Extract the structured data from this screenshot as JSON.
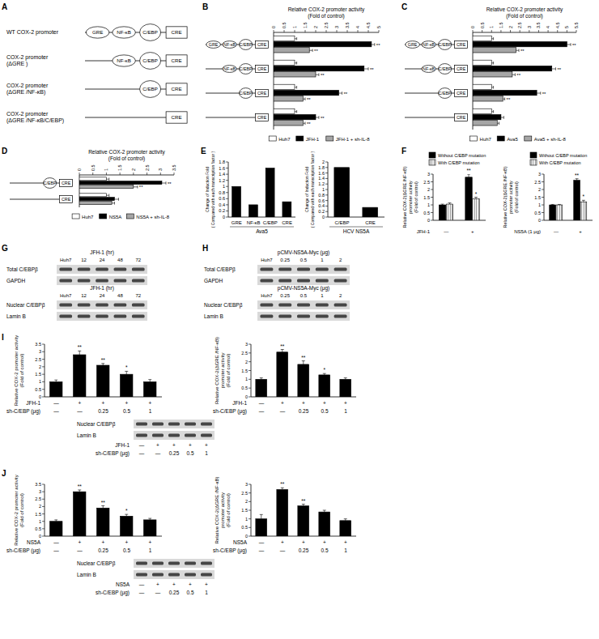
{
  "chart_data": [
    {
      "type": "bar",
      "orientation": "horizontal",
      "xlabel": [
        "Relative COX-2 promoter activity",
        "(Fold of control)"
      ],
      "categories": [
        "GRE NF-κB C/EBP CRE",
        "NF-κB C/EBP CRE",
        "C/EBP CRE",
        "CRE"
      ],
      "xlim": [
        0,
        5
      ],
      "xticks": [
        0,
        0.5,
        1,
        1.5,
        2,
        2.5,
        3,
        3.5,
        4,
        4.5,
        5
      ],
      "legend": "bottom",
      "series": [
        {
          "name": "Huh7",
          "color": "#ffffff",
          "values": [
            1,
            1,
            1,
            1
          ],
          "errors": [
            0.1,
            0.1,
            0.1,
            0.1
          ],
          "annotations": [
            null,
            null,
            null,
            null
          ]
        },
        {
          "name": "JFH-1",
          "color": "#000000",
          "values": [
            4.65,
            4.3,
            3.1,
            2.0
          ],
          "errors": [
            0.15,
            0.2,
            0.15,
            0.15
          ],
          "annotations": [
            "**",
            "**",
            "**",
            "**"
          ]
        },
        {
          "name": "JFH-1 + sh-IL-8",
          "color": "#a6a6a6",
          "values": [
            1.7,
            2.0,
            1.4,
            1.4
          ],
          "errors": [
            0.15,
            0.15,
            0.1,
            0.1
          ],
          "annotations": [
            "**",
            "**",
            "**",
            "**"
          ]
        }
      ]
    },
    {
      "type": "bar",
      "orientation": "horizontal",
      "xlabel": [
        "Relative COX-2 promoter activity",
        "(Fold of control)"
      ],
      "categories": [
        "GRE NF-κB C/EBP CRE",
        "NF-κB C/EBP CRE",
        "C/EBP CRE",
        "CRE"
      ],
      "xlim": [
        0,
        5.5
      ],
      "xticks": [
        0,
        0.5,
        1,
        1.5,
        2,
        2.5,
        3,
        3.5,
        4,
        4.5,
        5,
        5.5
      ],
      "legend": "bottom",
      "series": [
        {
          "name": "Huh7",
          "color": "#ffffff",
          "values": [
            1,
            1,
            1,
            1
          ],
          "errors": [
            0.1,
            0.1,
            0.1,
            0.1
          ],
          "annotations": [
            null,
            null,
            null,
            null
          ]
        },
        {
          "name": "Ava5",
          "color": "#000000",
          "values": [
            5.0,
            4.2,
            3.4,
            1.5
          ],
          "errors": [
            0.2,
            0.2,
            0.2,
            0.15
          ],
          "annotations": [
            "**",
            "**",
            "**",
            null
          ]
        },
        {
          "name": "Ava5 + sh-IL-8",
          "color": "#a6a6a6",
          "values": [
            2.3,
            2.1,
            1.6,
            1.3
          ],
          "errors": [
            0.15,
            0.15,
            0.1,
            0.1
          ],
          "annotations": [
            "**",
            "**",
            "**",
            null
          ]
        }
      ]
    },
    {
      "type": "bar",
      "orientation": "horizontal",
      "xlabel": [
        "Relative COX-2 promoter activity",
        "(Fold of control)"
      ],
      "categories": [
        "C/EBP CRE",
        "CRE"
      ],
      "xlim": [
        0,
        3.5
      ],
      "xticks": [
        0,
        0.5,
        1,
        1.5,
        2,
        2.5,
        3,
        3.5
      ],
      "legend": "bottom",
      "series": [
        {
          "name": "Huh7",
          "color": "#ffffff",
          "values": [
            1,
            1
          ],
          "errors": [
            0.1,
            0.1
          ],
          "annotations": [
            null,
            null
          ]
        },
        {
          "name": "NS5A",
          "color": "#000000",
          "values": [
            3.05,
            1.3
          ],
          "errors": [
            0.15,
            0.15
          ],
          "annotations": [
            "**",
            null
          ]
        },
        {
          "name": "NS5A + sh-IL-8",
          "color": "#a6a6a6",
          "values": [
            2.0,
            1.2
          ],
          "errors": [
            0.15,
            0.1
          ],
          "annotations": [
            "**",
            null
          ]
        }
      ]
    },
    {
      "type": "bar",
      "ylabel": [
        "Change of Induction Fold",
        "( Compared with each transcription factor )"
      ],
      "categories": [
        "GRE",
        "NF-κB",
        "C/EBP",
        "CRE"
      ],
      "xlabel": "Ava5",
      "ylim": [
        0,
        1.8
      ],
      "yticks": [
        0,
        0.2,
        0.4,
        0.6,
        0.8,
        1,
        1.2,
        1.4,
        1.6,
        1.8
      ],
      "color": "#000000",
      "values": [
        1,
        0.4,
        1.6,
        0.5
      ]
    },
    {
      "type": "bar",
      "ylabel": [
        "Change of Induction Fold",
        "( Compared with each transcription factor )"
      ],
      "categories": [
        "C/EBP",
        "CRE"
      ],
      "xlabel": "HCV NS5A",
      "ylim": [
        0,
        2
      ],
      "yticks": [
        0,
        0.2,
        0.4,
        0.6,
        0.8,
        1,
        1.2,
        1.4,
        1.6,
        1.8,
        2
      ],
      "color": "#000000",
      "values": [
        1.8,
        0.35
      ]
    },
    {
      "type": "bar",
      "ylabel": [
        "Relative COX-2(ΔGRE /NF-κB)",
        "promoter activity",
        "(Fold of control)"
      ],
      "categories": [
        "—",
        "+"
      ],
      "xlabel": "JFH-1",
      "legend": "top",
      "ylim": [
        0,
        3
      ],
      "yticks": [
        0,
        0.5,
        1,
        1.5,
        2,
        2.5,
        3
      ],
      "series": [
        {
          "name": "Without C/EBP mutation",
          "color": "#000000",
          "values": [
            1,
            2.8
          ],
          "errors": [
            0.05,
            0.2
          ],
          "annotations": [
            null,
            "**"
          ]
        },
        {
          "name": "With C/EBP mutation",
          "color": "#ffffff",
          "values": [
            1.05,
            1.4
          ],
          "errors": [
            0.08,
            0.1
          ],
          "annotations": [
            null,
            "*"
          ]
        }
      ]
    },
    {
      "type": "bar",
      "ylabel": [
        "Relative COX-2(ΔGRE /NF-κB)",
        "promoter activity",
        "(Fold of control)"
      ],
      "categories": [
        "—",
        "+"
      ],
      "xlabel": "NS5A (1 μg)",
      "legend": "top",
      "ylim": [
        0,
        3
      ],
      "yticks": [
        0,
        0.5,
        1,
        1.5,
        2,
        2.5,
        3
      ],
      "series": [
        {
          "name": "Without C/EBP mutation",
          "color": "#000000",
          "values": [
            1,
            2.6
          ],
          "errors": [
            0.03,
            0.1
          ],
          "annotations": [
            null,
            "**"
          ]
        },
        {
          "name": "With C/EBP mutation",
          "color": "#ffffff",
          "values": [
            1.0,
            1.2
          ],
          "errors": [
            0.03,
            0.1
          ],
          "annotations": [
            null,
            "*"
          ]
        }
      ]
    },
    {
      "type": "bar",
      "ylabel": [
        "Relative COX-2 promoter activity",
        "(Fold of control)"
      ],
      "categories": [
        null,
        null,
        null,
        null,
        null
      ],
      "ylim": [
        0,
        3.5
      ],
      "yticks": [
        0,
        0.5,
        1,
        1.5,
        2,
        2.5,
        3,
        3.5
      ],
      "color": "#000000",
      "values": [
        1,
        2.8,
        2.1,
        1.5,
        1.0
      ],
      "errors": [
        0.12,
        0.25,
        0.12,
        0.2,
        0.15
      ],
      "annotations": [
        null,
        "**",
        "**",
        "*",
        null
      ],
      "conditions": [
        {
          "label": "JFH-1",
          "values": [
            "—",
            "+",
            "+",
            "+",
            "+"
          ]
        },
        {
          "label": "sh-C/EBP (μg)",
          "values": [
            "—",
            "—",
            "0.25",
            "0.5",
            "1"
          ]
        }
      ]
    },
    {
      "type": "bar",
      "ylabel": [
        "Relative COX-2(ΔGRE /NF-κB)",
        "promoter activity",
        "(Fold of control)"
      ],
      "categories": [
        null,
        null,
        null,
        null,
        null
      ],
      "ylim": [
        0,
        3
      ],
      "yticks": [
        0,
        0.5,
        1,
        1.5,
        2,
        2.5,
        3
      ],
      "color": "#000000",
      "values": [
        1,
        2.55,
        1.85,
        1.25,
        1.0
      ],
      "errors": [
        0.08,
        0.15,
        0.2,
        0.08,
        0.08
      ],
      "annotations": [
        null,
        "**",
        "**",
        "*",
        null
      ],
      "conditions": [
        {
          "label": "JFH-1",
          "values": [
            "—",
            "+",
            "+",
            "+",
            "+"
          ]
        },
        {
          "label": "sh-C/EBP (μg)",
          "values": [
            "—",
            "—",
            "0.25",
            "0.5",
            "1"
          ]
        }
      ]
    },
    {
      "type": "bar",
      "ylabel": [
        "Relative COX-2 promoter activity",
        "(Fold of control)"
      ],
      "categories": [
        null,
        null,
        null,
        null,
        null
      ],
      "ylim": [
        0,
        3.5
      ],
      "yticks": [
        0,
        0.5,
        1,
        1.5,
        2,
        2.5,
        3,
        3.5
      ],
      "color": "#000000",
      "values": [
        1,
        3.0,
        1.9,
        1.35,
        1.1
      ],
      "errors": [
        0.1,
        0.12,
        0.15,
        0.12,
        0.1
      ],
      "annotations": [
        null,
        "**",
        "**",
        "*",
        null
      ],
      "conditions": [
        {
          "label": "NS5A",
          "values": [
            "—",
            "+",
            "+",
            "+",
            "+"
          ]
        },
        {
          "label": "sh-C/EBP (μg)",
          "values": [
            "—",
            "—",
            "0.25",
            "0.5",
            "1"
          ]
        }
      ]
    },
    {
      "type": "bar",
      "ylabel": [
        "Relative COX-2(ΔGRE /NF-κB)",
        "promoter activity",
        "(Fold of control)"
      ],
      "categories": [
        null,
        null,
        null,
        null,
        null
      ],
      "ylim": [
        0,
        3
      ],
      "yticks": [
        0,
        0.5,
        1,
        1.5,
        2,
        2.5,
        3
      ],
      "color": "#000000",
      "values": [
        1,
        2.7,
        1.75,
        1.4,
        0.9
      ],
      "errors": [
        0.25,
        0.1,
        0.1,
        0.1,
        0.1
      ],
      "annotations": [
        null,
        "**",
        "**",
        null,
        null
      ],
      "conditions": [
        {
          "label": "NS5A",
          "values": [
            "—",
            "+",
            "+",
            "+",
            "+"
          ]
        },
        {
          "label": "sh-C/EBP (μg)",
          "values": [
            "—",
            "—",
            "0.25",
            "0.5",
            "1"
          ]
        }
      ]
    }
  ],
  "figure": {
    "panel_letters": [
      "A",
      "B",
      "C",
      "D",
      "E",
      "F",
      "G",
      "H",
      "I",
      "J"
    ],
    "constructs": {
      "labels": [
        "WT COX-2 promoter",
        "COX-2 promoter (ΔGRE )",
        "COX-2 promoter (ΔGRE /NF-κB)",
        "COX-2 promoter (ΔGRE /NF-κB/C/EBP)"
      ],
      "elements": [
        "GRE NF-κB C/EBP CRE",
        "NF-κB C/EBP CRE",
        "C/EBP CRE",
        "CRE"
      ]
    },
    "blots": [
      {
        "header": "JFH-1 (hr)",
        "lanes": [
          "Huh7",
          "12",
          "24",
          "48",
          "72"
        ],
        "rows": [
          "Total C/EBPβ",
          "GAPDH"
        ]
      },
      {
        "header": "JFH-1 (hr)",
        "lanes": [
          "Huh7",
          "12",
          "24",
          "48",
          "72"
        ],
        "rows": [
          "Nuclear C/EBPβ",
          "Lamin B"
        ]
      },
      {
        "header": "pCMV-NS5A-Myc (μg)",
        "lanes": [
          "Huh7",
          "0.25",
          "0.5",
          "1",
          "2"
        ],
        "rows": [
          "Total C/EBPβ",
          "GAPDH"
        ]
      },
      {
        "header": "pCMV-NS5A-Myc (μg)",
        "lanes": [
          "Huh7",
          "0.25",
          "0.5",
          "1",
          "2"
        ],
        "rows": [
          "Nuclear C/EBPβ",
          "Lamin B"
        ]
      },
      {
        "rows": [
          "Nuclear C/EBPβ",
          "Lamin B"
        ],
        "conditions": [
          {
            "label": "JFH-1",
            "values": [
              "—",
              "+",
              "+",
              "+",
              "+"
            ]
          },
          {
            "label": "sh-C/EBP (μg)",
            "values": [
              "—",
              "—",
              "0.25",
              "0.5",
              "1"
            ]
          }
        ]
      },
      {
        "rows": [
          "Nuclear C/EBPβ",
          "Lamin B"
        ],
        "conditions": [
          {
            "label": "NS5A",
            "values": [
              "—",
              "+",
              "+",
              "+",
              "+"
            ]
          },
          {
            "label": "sh-C/EBP (μg)",
            "values": [
              "—",
              "—",
              "0.25",
              "0.5",
              "1"
            ]
          }
        ]
      }
    ]
  }
}
